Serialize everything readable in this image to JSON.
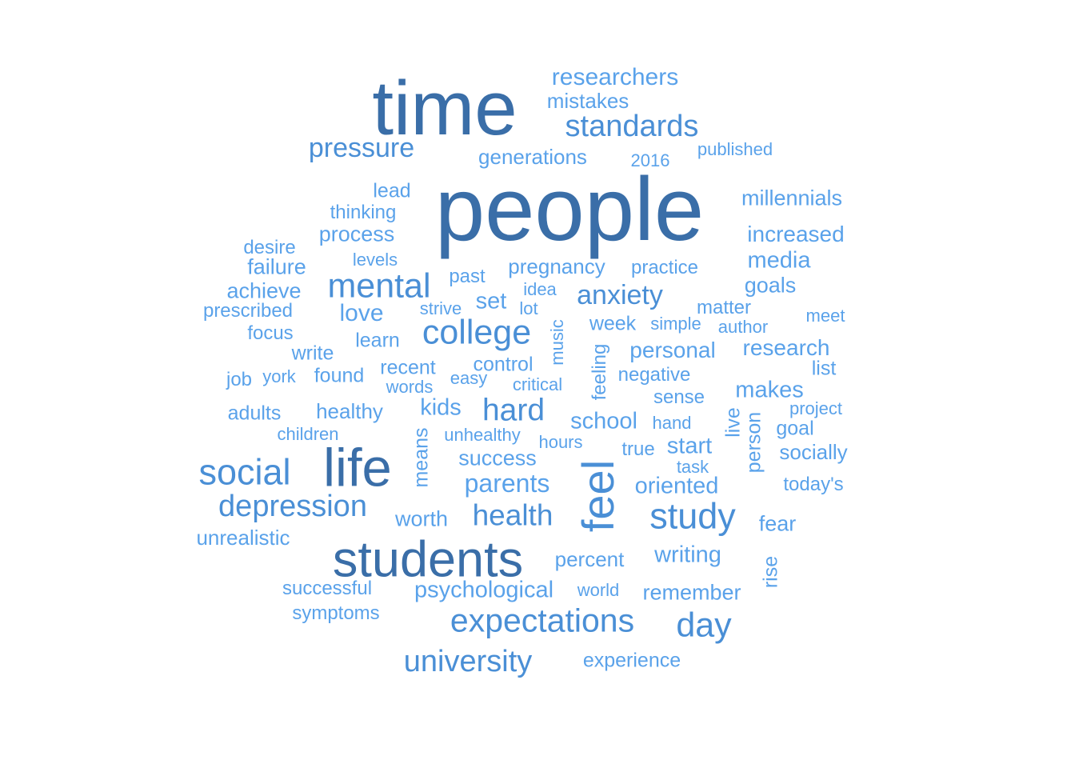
{
  "palette": {
    "dark": "#3a6ea8",
    "mid": "#4a8fd6",
    "light": "#5aa2ea",
    "background": "#ffffff"
  },
  "words": [
    {
      "text": "people",
      "weight": 1.0,
      "orientation": "horizontal"
    },
    {
      "text": "time",
      "weight": 0.86,
      "orientation": "horizontal"
    },
    {
      "text": "life",
      "weight": 0.6,
      "orientation": "horizontal"
    },
    {
      "text": "students",
      "weight": 0.56,
      "orientation": "horizontal"
    },
    {
      "text": "feel",
      "weight": 0.5,
      "orientation": "vertical"
    },
    {
      "text": "social",
      "weight": 0.4,
      "orientation": "horizontal"
    },
    {
      "text": "study",
      "weight": 0.4,
      "orientation": "horizontal"
    },
    {
      "text": "college",
      "weight": 0.38,
      "orientation": "horizontal"
    },
    {
      "text": "mental",
      "weight": 0.38,
      "orientation": "horizontal"
    },
    {
      "text": "day",
      "weight": 0.38,
      "orientation": "horizontal"
    },
    {
      "text": "expectations",
      "weight": 0.37,
      "orientation": "horizontal"
    },
    {
      "text": "hard",
      "weight": 0.35,
      "orientation": "horizontal"
    },
    {
      "text": "depression",
      "weight": 0.34,
      "orientation": "horizontal"
    },
    {
      "text": "university",
      "weight": 0.34,
      "orientation": "horizontal"
    },
    {
      "text": "standards",
      "weight": 0.34,
      "orientation": "horizontal"
    },
    {
      "text": "health",
      "weight": 0.33,
      "orientation": "horizontal"
    },
    {
      "text": "anxiety",
      "weight": 0.3,
      "orientation": "horizontal"
    },
    {
      "text": "pressure",
      "weight": 0.3,
      "orientation": "horizontal"
    },
    {
      "text": "parents",
      "weight": 0.29,
      "orientation": "horizontal"
    },
    {
      "text": "researchers",
      "weight": 0.27,
      "orientation": "horizontal"
    },
    {
      "text": "love",
      "weight": 0.27,
      "orientation": "horizontal"
    },
    {
      "text": "writing",
      "weight": 0.26,
      "orientation": "horizontal"
    },
    {
      "text": "school",
      "weight": 0.26,
      "orientation": "horizontal"
    },
    {
      "text": "start",
      "weight": 0.26,
      "orientation": "horizontal"
    },
    {
      "text": "oriented",
      "weight": 0.26,
      "orientation": "horizontal"
    },
    {
      "text": "psychological",
      "weight": 0.26,
      "orientation": "horizontal"
    },
    {
      "text": "set",
      "weight": 0.26,
      "orientation": "horizontal"
    },
    {
      "text": "kids",
      "weight": 0.26,
      "orientation": "horizontal"
    },
    {
      "text": "media",
      "weight": 0.26,
      "orientation": "horizontal"
    },
    {
      "text": "makes",
      "weight": 0.26,
      "orientation": "horizontal"
    },
    {
      "text": "research",
      "weight": 0.25,
      "orientation": "horizontal"
    },
    {
      "text": "personal",
      "weight": 0.25,
      "orientation": "horizontal"
    },
    {
      "text": "increased",
      "weight": 0.25,
      "orientation": "horizontal"
    },
    {
      "text": "millennials",
      "weight": 0.24,
      "orientation": "horizontal"
    },
    {
      "text": "process",
      "weight": 0.24,
      "orientation": "horizontal"
    },
    {
      "text": "success",
      "weight": 0.24,
      "orientation": "horizontal"
    },
    {
      "text": "goals",
      "weight": 0.24,
      "orientation": "horizontal"
    },
    {
      "text": "worth",
      "weight": 0.24,
      "orientation": "horizontal"
    },
    {
      "text": "remember",
      "weight": 0.24,
      "orientation": "horizontal"
    },
    {
      "text": "fear",
      "weight": 0.24,
      "orientation": "horizontal"
    },
    {
      "text": "failure",
      "weight": 0.24,
      "orientation": "horizontal"
    },
    {
      "text": "achieve",
      "weight": 0.24,
      "orientation": "horizontal"
    },
    {
      "text": "pregnancy",
      "weight": 0.23,
      "orientation": "horizontal"
    },
    {
      "text": "socially",
      "weight": 0.23,
      "orientation": "horizontal"
    },
    {
      "text": "unrealistic",
      "weight": 0.23,
      "orientation": "horizontal"
    },
    {
      "text": "healthy",
      "weight": 0.23,
      "orientation": "horizontal"
    },
    {
      "text": "mistakes",
      "weight": 0.23,
      "orientation": "horizontal"
    },
    {
      "text": "generations",
      "weight": 0.23,
      "orientation": "horizontal"
    },
    {
      "text": "percent",
      "weight": 0.23,
      "orientation": "horizontal"
    },
    {
      "text": "lead",
      "weight": 0.22,
      "orientation": "horizontal"
    },
    {
      "text": "recent",
      "weight": 0.22,
      "orientation": "horizontal"
    },
    {
      "text": "control",
      "weight": 0.22,
      "orientation": "horizontal"
    },
    {
      "text": "list",
      "weight": 0.22,
      "orientation": "horizontal"
    },
    {
      "text": "goal",
      "weight": 0.22,
      "orientation": "horizontal"
    },
    {
      "text": "experience",
      "weight": 0.22,
      "orientation": "horizontal"
    },
    {
      "text": "adults",
      "weight": 0.22,
      "orientation": "horizontal"
    },
    {
      "text": "write",
      "weight": 0.22,
      "orientation": "horizontal"
    },
    {
      "text": "found",
      "weight": 0.22,
      "orientation": "horizontal"
    },
    {
      "text": "learn",
      "weight": 0.22,
      "orientation": "horizontal"
    },
    {
      "text": "week",
      "weight": 0.22,
      "orientation": "horizontal"
    },
    {
      "text": "thinking",
      "weight": 0.21,
      "orientation": "horizontal"
    },
    {
      "text": "desire",
      "weight": 0.21,
      "orientation": "horizontal"
    },
    {
      "text": "sense",
      "weight": 0.21,
      "orientation": "horizontal"
    },
    {
      "text": "practice",
      "weight": 0.21,
      "orientation": "horizontal"
    },
    {
      "text": "prescribed",
      "weight": 0.21,
      "orientation": "horizontal"
    },
    {
      "text": "focus",
      "weight": 0.21,
      "orientation": "horizontal"
    },
    {
      "text": "job",
      "weight": 0.21,
      "orientation": "horizontal"
    },
    {
      "text": "matter",
      "weight": 0.21,
      "orientation": "horizontal"
    },
    {
      "text": "past",
      "weight": 0.21,
      "orientation": "horizontal"
    },
    {
      "text": "negative",
      "weight": 0.21,
      "orientation": "horizontal"
    },
    {
      "text": "today's",
      "weight": 0.21,
      "orientation": "horizontal"
    },
    {
      "text": "true",
      "weight": 0.21,
      "orientation": "horizontal"
    },
    {
      "text": "symptoms",
      "weight": 0.21,
      "orientation": "horizontal"
    },
    {
      "text": "successful",
      "weight": 0.21,
      "orientation": "horizontal"
    },
    {
      "text": "world",
      "weight": 0.2,
      "orientation": "horizontal"
    },
    {
      "text": "published",
      "weight": 0.2,
      "orientation": "horizontal"
    },
    {
      "text": "2016",
      "weight": 0.2,
      "orientation": "horizontal"
    },
    {
      "text": "author",
      "weight": 0.2,
      "orientation": "horizontal"
    },
    {
      "text": "children",
      "weight": 0.2,
      "orientation": "horizontal"
    },
    {
      "text": "hand",
      "weight": 0.2,
      "orientation": "horizontal"
    },
    {
      "text": "project",
      "weight": 0.2,
      "orientation": "horizontal"
    },
    {
      "text": "meet",
      "weight": 0.2,
      "orientation": "horizontal"
    },
    {
      "text": "levels",
      "weight": 0.2,
      "orientation": "horizontal"
    },
    {
      "text": "idea",
      "weight": 0.2,
      "orientation": "horizontal"
    },
    {
      "text": "lot",
      "weight": 0.2,
      "orientation": "horizontal"
    },
    {
      "text": "strive",
      "weight": 0.2,
      "orientation": "horizontal"
    },
    {
      "text": "simple",
      "weight": 0.2,
      "orientation": "horizontal"
    },
    {
      "text": "critical",
      "weight": 0.2,
      "orientation": "horizontal"
    },
    {
      "text": "easy",
      "weight": 0.2,
      "orientation": "horizontal"
    },
    {
      "text": "words",
      "weight": 0.2,
      "orientation": "horizontal"
    },
    {
      "text": "york",
      "weight": 0.2,
      "orientation": "horizontal"
    },
    {
      "text": "unhealthy",
      "weight": 0.2,
      "orientation": "horizontal"
    },
    {
      "text": "hours",
      "weight": 0.2,
      "orientation": "horizontal"
    },
    {
      "text": "task",
      "weight": 0.2,
      "orientation": "horizontal"
    },
    {
      "text": "music",
      "weight": 0.2,
      "orientation": "vertical"
    },
    {
      "text": "feeling",
      "weight": 0.21,
      "orientation": "vertical"
    },
    {
      "text": "means",
      "weight": 0.22,
      "orientation": "vertical"
    },
    {
      "text": "live",
      "weight": 0.22,
      "orientation": "vertical"
    },
    {
      "text": "person",
      "weight": 0.22,
      "orientation": "vertical"
    },
    {
      "text": "rise",
      "weight": 0.22,
      "orientation": "vertical"
    }
  ]
}
